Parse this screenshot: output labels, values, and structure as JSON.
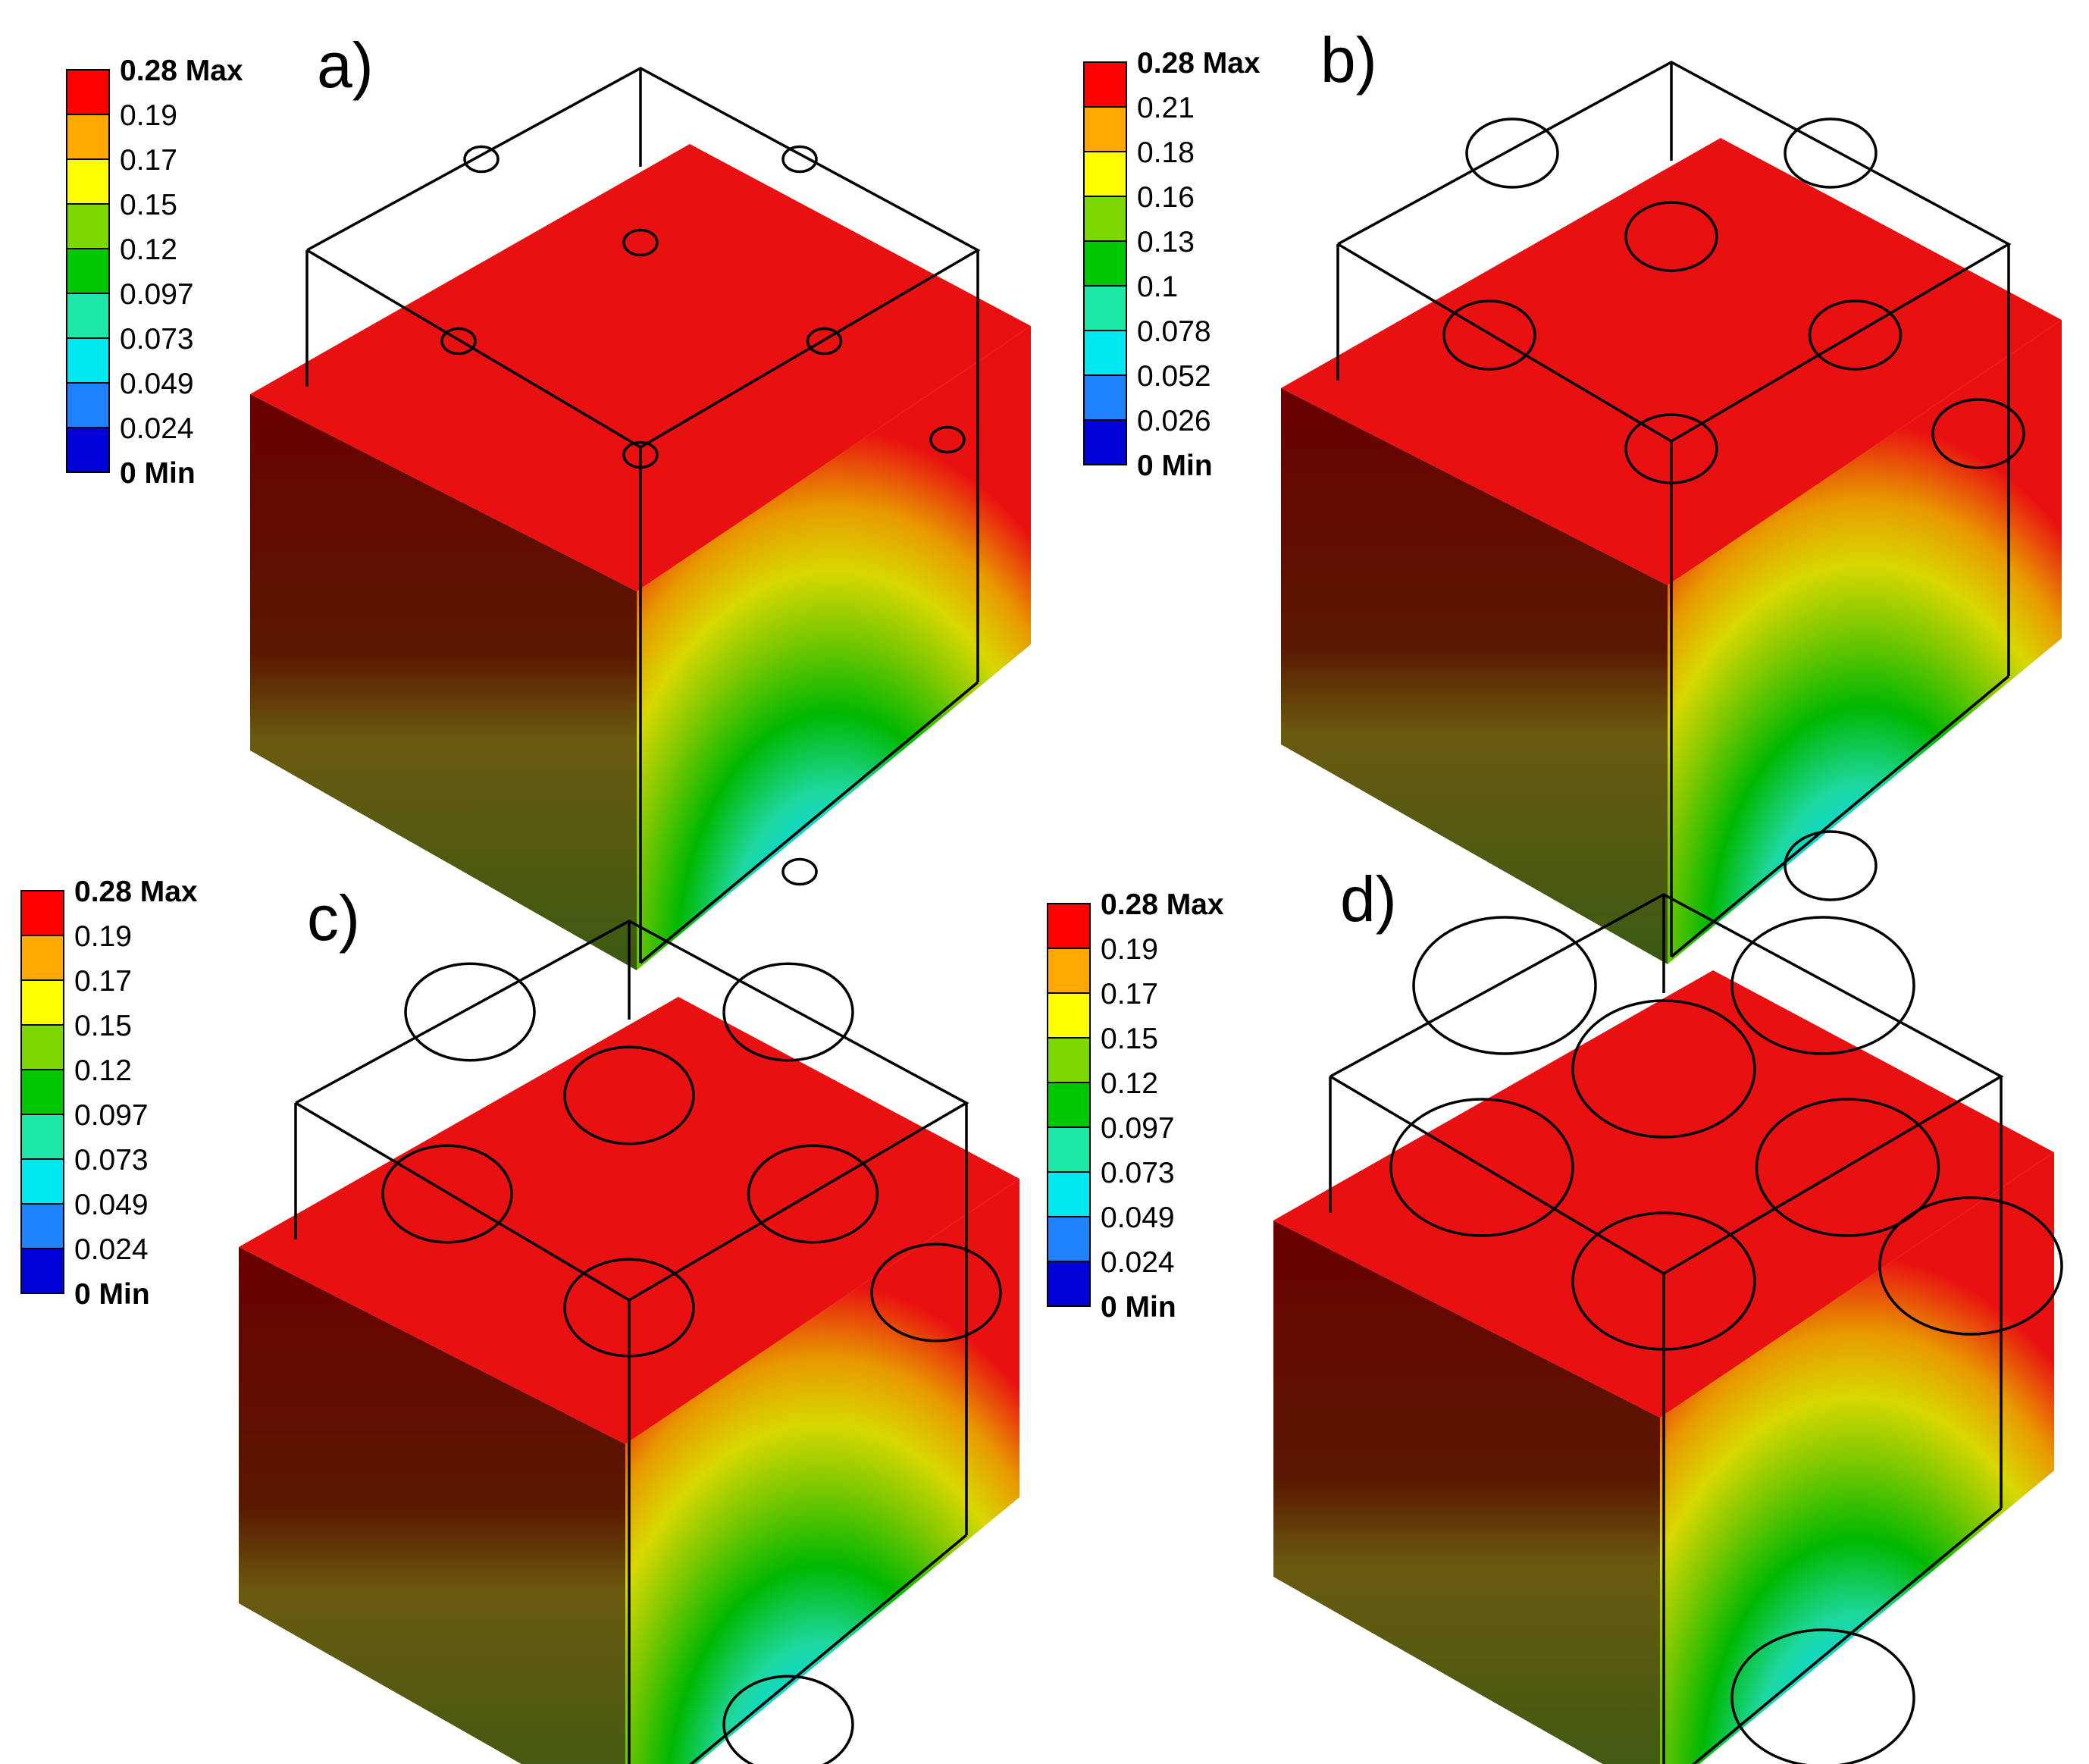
{
  "colors": {
    "levels": [
      "#0000d8",
      "#1f82ff",
      "#00e8f0",
      "#1ee8a8",
      "#00c800",
      "#7cd800",
      "#ffff00",
      "#ffa800",
      "#ff0000"
    ],
    "top_face": "#e81010",
    "left_face_top": "#6a0000",
    "left_face_bottom": "#3a5a12"
  },
  "panels": [
    {
      "id": "a",
      "letter": "a)",
      "legend": [
        "0.28 Max",
        "0.19",
        "0.17",
        "0.15",
        "0.12",
        "0.097",
        "0.073",
        "0.049",
        "0.024",
        "0 Min"
      ],
      "legend_origin": [
        88,
        92
      ],
      "origin": [
        330,
        90
      ]
    },
    {
      "id": "b",
      "letter": "b)",
      "legend": [
        "0.28 Max",
        "0.21",
        "0.18",
        "0.16",
        "0.13",
        "0.1",
        "0.078",
        "0.052",
        "0.026",
        "0 Min"
      ],
      "legend_origin": [
        1430,
        82
      ],
      "origin": [
        1690,
        82
      ]
    },
    {
      "id": "c",
      "letter": "c)",
      "legend": [
        "0.28 Max",
        "0.19",
        "0.17",
        "0.15",
        "0.12",
        "0.097",
        "0.073",
        "0.049",
        "0.024",
        "0 Min"
      ],
      "legend_origin": [
        28,
        1175
      ],
      "origin": [
        315,
        1215
      ]
    },
    {
      "id": "d",
      "letter": "d)",
      "legend": [
        "0.28 Max",
        "0.19",
        "0.17",
        "0.15",
        "0.12",
        "0.097",
        "0.073",
        "0.049",
        "0.024",
        "0 Min"
      ],
      "legend_origin": [
        1382,
        1192
      ],
      "origin": [
        1680,
        1180
      ]
    }
  ]
}
